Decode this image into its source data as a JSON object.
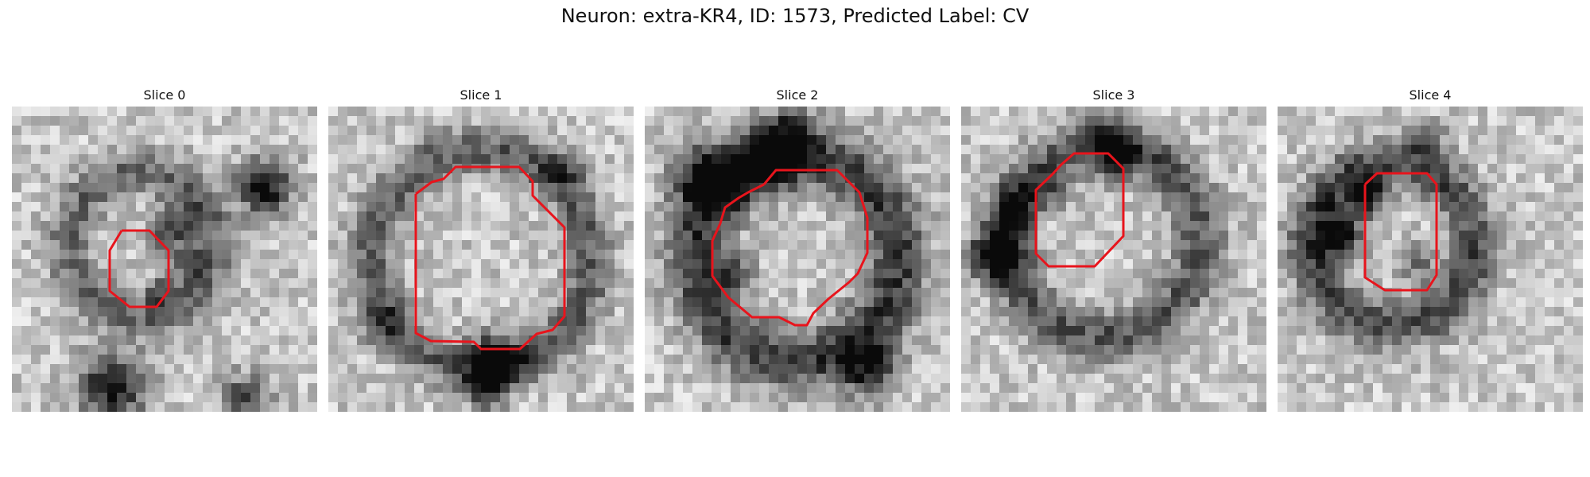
{
  "figure": {
    "title": "Neuron: extra-KR4, ID: 1573, Predicted Label: CV"
  },
  "panels": [
    {
      "title": "Slice 0"
    },
    {
      "title": "Slice 1"
    },
    {
      "title": "Slice 2"
    },
    {
      "title": "Slice 3"
    },
    {
      "title": "Slice 4"
    }
  ],
  "colors": {
    "contour": "#e8141c",
    "background": "#ffffff"
  }
}
